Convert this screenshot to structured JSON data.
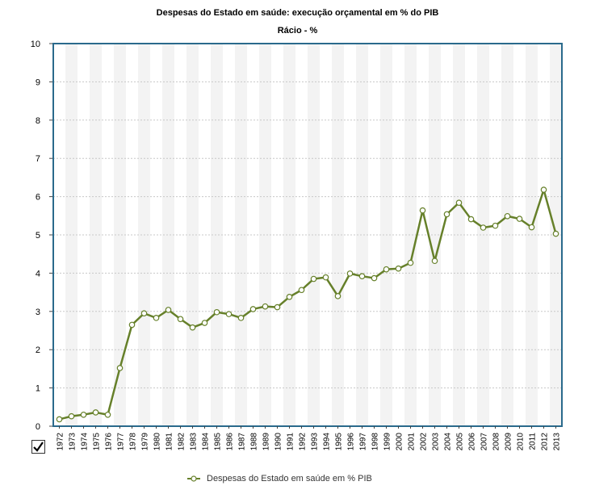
{
  "chart_data": {
    "type": "line",
    "title": "Despesas do Estado em saúde: execução orçamental em % do PIB",
    "subtitle": "Rácio - %",
    "x": [
      "1972",
      "1973",
      "1974",
      "1975",
      "1976",
      "1977",
      "1978",
      "1979",
      "1980",
      "1981",
      "1982",
      "1983",
      "1984",
      "1985",
      "1986",
      "1987",
      "1988",
      "1989",
      "1990",
      "1991",
      "1992",
      "1993",
      "1994",
      "1995",
      "1996",
      "1997",
      "1998",
      "1999",
      "2000",
      "2001",
      "2002",
      "2003",
      "2004",
      "2005",
      "2006",
      "2007",
      "2008",
      "2009",
      "2010",
      "2011",
      "2012",
      "2013"
    ],
    "series": [
      {
        "name": "Despesas do Estado em saúde em % PIB",
        "values": [
          0.18,
          0.26,
          0.3,
          0.36,
          0.3,
          1.52,
          2.65,
          2.95,
          2.83,
          3.04,
          2.8,
          2.58,
          2.7,
          2.98,
          2.93,
          2.83,
          3.06,
          3.13,
          3.11,
          3.38,
          3.56,
          3.85,
          3.89,
          3.4,
          3.99,
          3.92,
          3.87,
          4.1,
          4.12,
          4.27,
          5.64,
          4.32,
          5.54,
          5.84,
          5.41,
          5.19,
          5.24,
          5.49,
          5.42,
          5.2,
          6.18,
          5.03
        ]
      }
    ],
    "ylim": [
      0,
      10
    ],
    "yticks": [
      "0",
      "1",
      "2",
      "3",
      "4",
      "5",
      "6",
      "7",
      "8",
      "9",
      "10"
    ],
    "grid": true,
    "legend_position": "bottom",
    "colors": {
      "line": "#66802a",
      "marker_fill": "#ffffff",
      "frame": "#2a6a8c",
      "band": "#f3f3f3"
    }
  }
}
